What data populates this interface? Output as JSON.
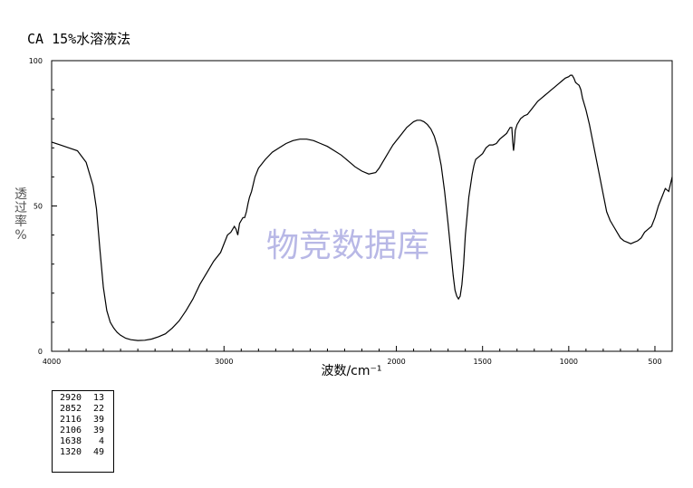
{
  "title": "CA 15%水溶液法",
  "watermark": "物竞数据库",
  "chart_data": {
    "type": "line",
    "xlabel": "波数/cm⁻¹",
    "ylabel": "透过率%",
    "xlim": [
      4000,
      400
    ],
    "ylim": [
      0,
      100
    ],
    "x_ticks": [
      4000,
      3000,
      2000,
      1500,
      1000,
      500
    ],
    "y_ticks": [
      0,
      50,
      100
    ],
    "grid": false,
    "series": [
      {
        "x": [
          4000,
          3950,
          3900,
          3850,
          3800,
          3760,
          3740,
          3720,
          3700,
          3680,
          3660,
          3640,
          3620,
          3600,
          3570,
          3540,
          3500,
          3460,
          3420,
          3380,
          3340,
          3300,
          3260,
          3220,
          3180,
          3140,
          3100,
          3060,
          3020,
          2980,
          2960,
          2940,
          2930,
          2920,
          2910,
          2900,
          2890,
          2880,
          2870,
          2860,
          2852,
          2840,
          2820,
          2800,
          2760,
          2720,
          2680,
          2640,
          2600,
          2560,
          2520,
          2480,
          2440,
          2400,
          2360,
          2320,
          2280,
          2240,
          2200,
          2160,
          2120,
          2100,
          2080,
          2060,
          2040,
          2020,
          2000,
          1980,
          1960,
          1940,
          1920,
          1900,
          1880,
          1860,
          1840,
          1820,
          1800,
          1780,
          1760,
          1740,
          1720,
          1700,
          1680,
          1670,
          1660,
          1650,
          1640,
          1630,
          1620,
          1610,
          1600,
          1580,
          1560,
          1550,
          1540,
          1520,
          1500,
          1480,
          1460,
          1440,
          1420,
          1400,
          1380,
          1360,
          1350,
          1340,
          1330,
          1325,
          1320,
          1315,
          1310,
          1300,
          1280,
          1260,
          1240,
          1220,
          1200,
          1180,
          1160,
          1140,
          1120,
          1100,
          1080,
          1060,
          1040,
          1020,
          1000,
          990,
          980,
          970,
          960,
          950,
          940,
          930,
          920,
          900,
          880,
          860,
          840,
          820,
          800,
          780,
          760,
          740,
          720,
          700,
          680,
          660,
          640,
          620,
          600,
          580,
          560,
          540,
          520,
          500,
          480,
          460,
          440,
          420,
          400
        ],
        "y": [
          72,
          71,
          70,
          69,
          65,
          57,
          49,
          35,
          22,
          14,
          10,
          8,
          6.5,
          5.5,
          4.5,
          4,
          3.7,
          3.8,
          4.2,
          5,
          6,
          8,
          10.5,
          14,
          18,
          23,
          27,
          31,
          34,
          40,
          41,
          43,
          42,
          40,
          44,
          45,
          46,
          46,
          48,
          51,
          53,
          55,
          60,
          63,
          66,
          68.5,
          70,
          71.5,
          72.5,
          73,
          73,
          72.5,
          71.5,
          70.5,
          69,
          67.5,
          65.5,
          63.5,
          62,
          61,
          61.5,
          63,
          65,
          67,
          69,
          71,
          72.5,
          74,
          75.5,
          77,
          78,
          79,
          79.5,
          79.5,
          79,
          78,
          76.5,
          74,
          70,
          64,
          55,
          44,
          32,
          26,
          21,
          19,
          18,
          19,
          23,
          30,
          40,
          53,
          61,
          64,
          66,
          67,
          68,
          70,
          71,
          71,
          71.5,
          73,
          74,
          75,
          76,
          77,
          77,
          72,
          69,
          72,
          76,
          78,
          80,
          81,
          81.5,
          83,
          84.5,
          86,
          87,
          88,
          89,
          90,
          91,
          92,
          93,
          94,
          94.5,
          95,
          95,
          94,
          92.5,
          92,
          91.5,
          90,
          87,
          83,
          78,
          72,
          66,
          60,
          54,
          48,
          45,
          43,
          41,
          39,
          38,
          37.5,
          37,
          37.5,
          38,
          39,
          41,
          42,
          43,
          46,
          50,
          53,
          56,
          55,
          60
        ]
      }
    ],
    "peak_table": [
      [
        "2920",
        "13"
      ],
      [
        "2852",
        "22"
      ],
      [
        "2116",
        "39"
      ],
      [
        "2106",
        "39"
      ],
      [
        "1638",
        "4"
      ],
      [
        "1320",
        "49"
      ]
    ]
  }
}
